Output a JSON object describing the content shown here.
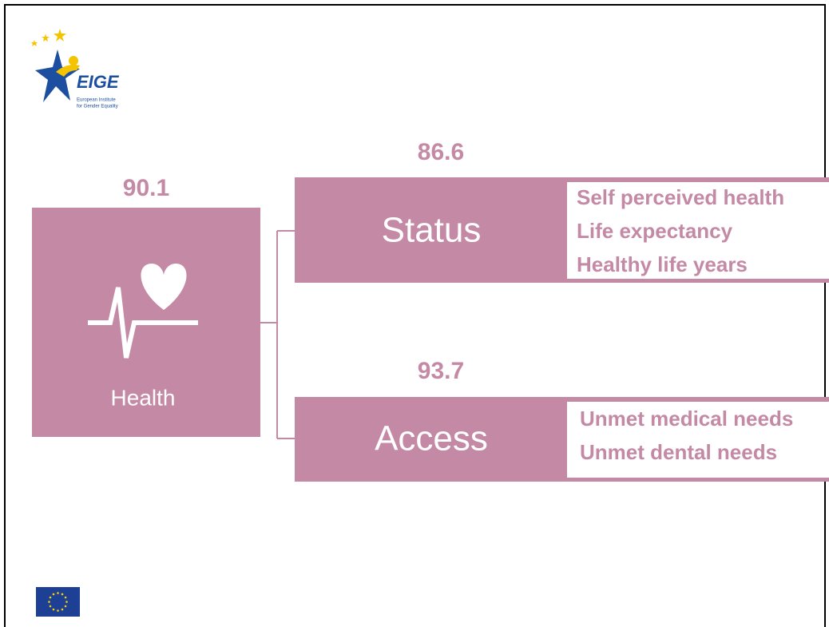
{
  "logo": {
    "name": "EIGE",
    "subtitle": [
      "European Institute",
      "for Gender Equality"
    ]
  },
  "domain": {
    "score": 90.1,
    "label": "Health"
  },
  "subdomains": [
    {
      "score": 86.6,
      "label": "Status",
      "items": [
        "Self perceived health",
        "Life expectancy",
        "Healthy life years"
      ]
    },
    {
      "score": 93.7,
      "label": "Access",
      "items": [
        "Unmet medical needs",
        "Unmet dental needs"
      ]
    }
  ]
}
